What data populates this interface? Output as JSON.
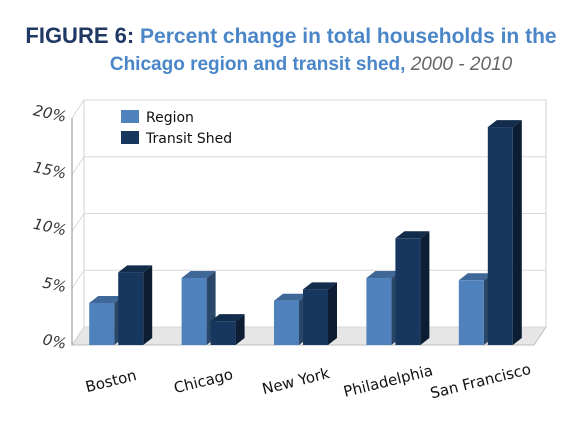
{
  "title": {
    "figure_label": "FIGURE 6:",
    "line1": "Percent change in total households in the",
    "line2": "Chicago region and transit shed,",
    "line2_suffix": "2000 - 2010"
  },
  "chart_data": {
    "type": "bar",
    "categories": [
      "Boston",
      "Chicago",
      "New York",
      "Philadelphia",
      "San Francisco"
    ],
    "series": [
      {
        "name": "Region",
        "values": [
          3.7,
          5.9,
          3.9,
          5.9,
          5.7
        ],
        "color": "#4f81bd"
      },
      {
        "name": "Transit Shed",
        "values": [
          6.4,
          2.1,
          4.9,
          9.4,
          19.2
        ],
        "color": "#17375e"
      }
    ],
    "ylim": [
      0,
      20
    ],
    "yticks": [
      {
        "value": 0,
        "label": "0%"
      },
      {
        "value": 5,
        "label": "5%"
      },
      {
        "value": 10,
        "label": "10%"
      },
      {
        "value": 15,
        "label": "15%"
      },
      {
        "value": 20,
        "label": "20%"
      }
    ],
    "grid": true,
    "legend_position": "top-left"
  }
}
